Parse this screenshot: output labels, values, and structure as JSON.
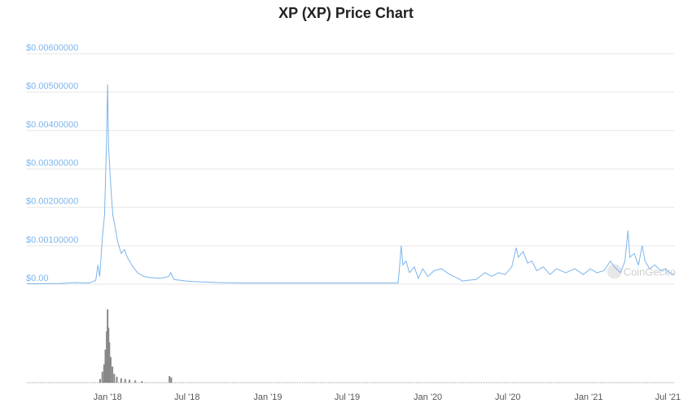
{
  "chart_data": {
    "type": "line",
    "title": "XP (XP) Price Chart",
    "watermark": "CoinGecko",
    "y_ticks": [
      "$0.00",
      "$0.00100000",
      "$0.00200000",
      "$0.00300000",
      "$0.00400000",
      "$0.00500000",
      "$0.00600000"
    ],
    "ylim": [
      0,
      0.006
    ],
    "x_ticks": [
      "Jan '18",
      "Jul '18",
      "Jan '19",
      "Jul '19",
      "Jan '20",
      "Jul '20",
      "Jan '21",
      "Jul '21"
    ],
    "x_tick_dates": [
      "2018-01-01",
      "2018-07-01",
      "2019-01-01",
      "2019-07-01",
      "2020-01-01",
      "2020-07-01",
      "2021-01-01",
      "2021-07-01"
    ],
    "xlim": [
      "2017-07-01",
      "2021-07-15"
    ],
    "grid": true,
    "series": [
      {
        "color": "#7cb5ec",
        "points": [
          [
            "2017-07-01",
            1e-05
          ],
          [
            "2017-09-15",
            2e-05
          ],
          [
            "2017-10-20",
            4e-05
          ],
          [
            "2017-11-20",
            3e-05
          ],
          [
            "2017-12-05",
            0.0001
          ],
          [
            "2017-12-10",
            0.0005
          ],
          [
            "2017-12-14",
            0.0002
          ],
          [
            "2017-12-20",
            0.0012
          ],
          [
            "2017-12-25",
            0.0018
          ],
          [
            "2017-12-29",
            0.0035
          ],
          [
            "2018-01-01",
            0.0052
          ],
          [
            "2018-01-03",
            0.0036
          ],
          [
            "2018-01-06",
            0.003
          ],
          [
            "2018-01-09",
            0.0024
          ],
          [
            "2018-01-13",
            0.0018
          ],
          [
            "2018-01-18",
            0.0015
          ],
          [
            "2018-01-24",
            0.0011
          ],
          [
            "2018-02-01",
            0.0008
          ],
          [
            "2018-02-08",
            0.0009
          ],
          [
            "2018-02-15",
            0.0007
          ],
          [
            "2018-02-25",
            0.0005
          ],
          [
            "2018-03-10",
            0.0003
          ],
          [
            "2018-03-25",
            0.0002
          ],
          [
            "2018-04-10",
            0.00017
          ],
          [
            "2018-05-01",
            0.00015
          ],
          [
            "2018-05-20",
            0.0002
          ],
          [
            "2018-05-25",
            0.0003
          ],
          [
            "2018-06-01",
            0.00012
          ],
          [
            "2018-07-01",
            8e-05
          ],
          [
            "2018-08-01",
            6e-05
          ],
          [
            "2018-09-15",
            4e-05
          ],
          [
            "2018-11-01",
            3e-05
          ],
          [
            "2019-01-01",
            3e-05
          ],
          [
            "2019-04-01",
            3e-05
          ],
          [
            "2019-07-01",
            3e-05
          ],
          [
            "2019-09-01",
            3e-05
          ],
          [
            "2019-10-25",
            3e-05
          ],
          [
            "2019-10-28",
            0.0004
          ],
          [
            "2019-11-01",
            0.001
          ],
          [
            "2019-11-05",
            0.0005
          ],
          [
            "2019-11-12",
            0.0006
          ],
          [
            "2019-11-20",
            0.0003
          ],
          [
            "2019-12-01",
            0.00045
          ],
          [
            "2019-12-10",
            0.00015
          ],
          [
            "2019-12-20",
            0.0004
          ],
          [
            "2020-01-01",
            0.0002
          ],
          [
            "2020-01-15",
            0.00035
          ],
          [
            "2020-02-01",
            0.0004
          ],
          [
            "2020-02-20",
            0.00025
          ],
          [
            "2020-03-10",
            0.00015
          ],
          [
            "2020-03-20",
            8e-05
          ],
          [
            "2020-04-01",
            0.0001
          ],
          [
            "2020-04-20",
            0.00012
          ],
          [
            "2020-05-10",
            0.0003
          ],
          [
            "2020-05-25",
            0.0002
          ],
          [
            "2020-06-10",
            0.0003
          ],
          [
            "2020-06-25",
            0.00025
          ],
          [
            "2020-07-10",
            0.00045
          ],
          [
            "2020-07-20",
            0.00095
          ],
          [
            "2020-07-25",
            0.0007
          ],
          [
            "2020-08-05",
            0.00085
          ],
          [
            "2020-08-15",
            0.00055
          ],
          [
            "2020-08-25",
            0.0006
          ],
          [
            "2020-09-05",
            0.00035
          ],
          [
            "2020-09-20",
            0.00045
          ],
          [
            "2020-10-05",
            0.00025
          ],
          [
            "2020-10-20",
            0.0004
          ],
          [
            "2020-11-10",
            0.0003
          ],
          [
            "2020-12-01",
            0.0004
          ],
          [
            "2020-12-20",
            0.00025
          ],
          [
            "2021-01-05",
            0.0004
          ],
          [
            "2021-01-20",
            0.0003
          ],
          [
            "2021-02-05",
            0.00035
          ],
          [
            "2021-02-20",
            0.0006
          ],
          [
            "2021-03-01",
            0.00045
          ],
          [
            "2021-03-15",
            0.0003
          ],
          [
            "2021-03-25",
            0.0006
          ],
          [
            "2021-04-01",
            0.0014
          ],
          [
            "2021-04-05",
            0.0007
          ],
          [
            "2021-04-15",
            0.0008
          ],
          [
            "2021-04-25",
            0.0005
          ],
          [
            "2021-05-03",
            0.001
          ],
          [
            "2021-05-10",
            0.0006
          ],
          [
            "2021-05-20",
            0.0004
          ],
          [
            "2021-06-01",
            0.0005
          ],
          [
            "2021-06-15",
            0.00035
          ],
          [
            "2021-06-25",
            0.0004
          ],
          [
            "2021-07-05",
            0.0003
          ],
          [
            "2021-07-15",
            0.00025
          ]
        ]
      }
    ],
    "volume": {
      "color": "#888888",
      "points": [
        [
          "2017-12-15",
          0.05
        ],
        [
          "2017-12-20",
          0.15
        ],
        [
          "2017-12-24",
          0.25
        ],
        [
          "2017-12-27",
          0.45
        ],
        [
          "2017-12-30",
          0.7
        ],
        [
          "2018-01-01",
          1.0
        ],
        [
          "2018-01-03",
          0.75
        ],
        [
          "2018-01-05",
          0.55
        ],
        [
          "2018-01-08",
          0.35
        ],
        [
          "2018-01-12",
          0.22
        ],
        [
          "2018-01-16",
          0.12
        ],
        [
          "2018-01-22",
          0.08
        ],
        [
          "2018-02-01",
          0.06
        ],
        [
          "2018-02-10",
          0.05
        ],
        [
          "2018-02-20",
          0.04
        ],
        [
          "2018-03-05",
          0.03
        ],
        [
          "2018-03-20",
          0.02
        ],
        [
          "2018-05-22",
          0.09
        ],
        [
          "2018-05-26",
          0.07
        ]
      ]
    }
  }
}
